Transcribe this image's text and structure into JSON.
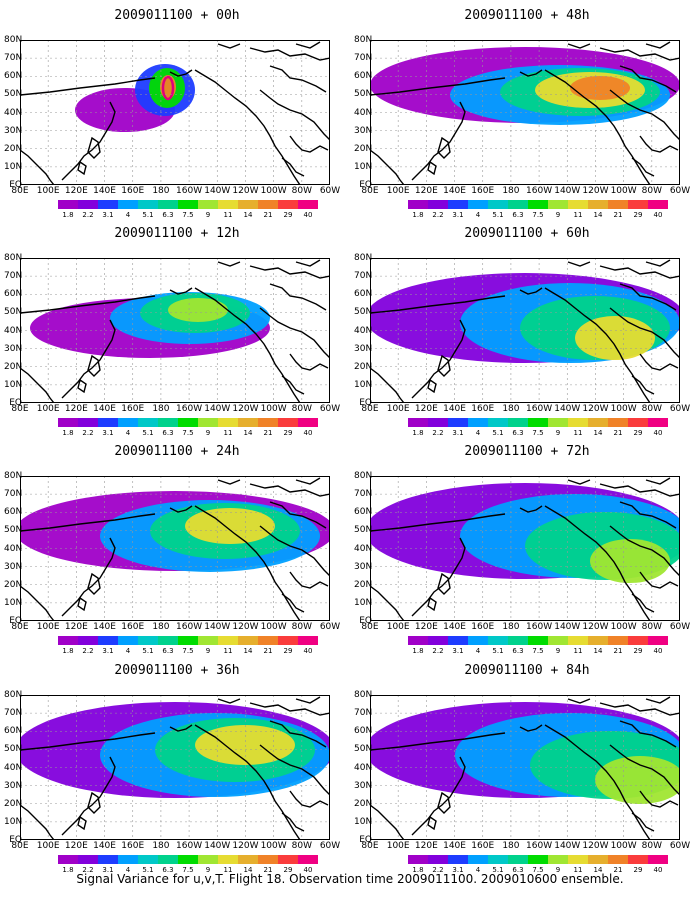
{
  "caption": "Signal Variance for u,v,T. Flight 18. Observation time 2009011100. 2009010600 ensemble.",
  "panels": [
    {
      "title": "2009011100 + 00h"
    },
    {
      "title": "2009011100 + 48h"
    },
    {
      "title": "2009011100 + 12h"
    },
    {
      "title": "2009011100 + 60h"
    },
    {
      "title": "2009011100 + 24h"
    },
    {
      "title": "2009011100 + 72h"
    },
    {
      "title": "2009011100 + 36h"
    },
    {
      "title": "2009011100 + 84h"
    }
  ],
  "lat_labels": [
    "80N",
    "70N",
    "60N",
    "50N",
    "40N",
    "30N",
    "20N",
    "10N",
    "EQ"
  ],
  "lon_labels": [
    "80E",
    "100E",
    "120E",
    "140E",
    "160E",
    "180",
    "160W",
    "140W",
    "120W",
    "100W",
    "80W",
    "60W"
  ],
  "colorbar": {
    "labels": [
      "1.8",
      "2.2",
      "3.1",
      "4",
      "5.1",
      "6.3",
      "7.5",
      "9",
      "11",
      "14",
      "21",
      "29",
      "40"
    ],
    "colors": [
      "#a000c8",
      "#8200dc",
      "#1e3cff",
      "#00a0ff",
      "#00c8c8",
      "#00d28c",
      "#00dc00",
      "#a0e632",
      "#e6dc32",
      "#e6af2d",
      "#f08228",
      "#fa3c3c",
      "#f00082"
    ]
  },
  "colors": {
    "land_outline": "#000000",
    "grid": "#999999",
    "hotspot": "#e0007a"
  }
}
